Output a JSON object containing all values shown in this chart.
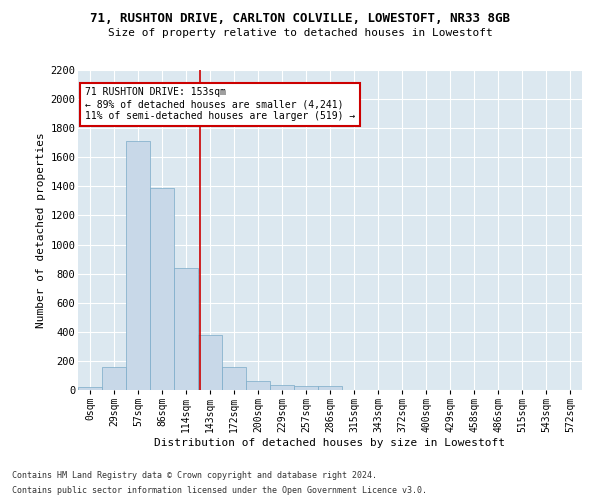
{
  "title": "71, RUSHTON DRIVE, CARLTON COLVILLE, LOWESTOFT, NR33 8GB",
  "subtitle": "Size of property relative to detached houses in Lowestoft",
  "xlabel": "Distribution of detached houses by size in Lowestoft",
  "ylabel": "Number of detached properties",
  "bar_color": "#c8d8e8",
  "bar_edge_color": "#7aaac8",
  "background_color": "#dce8f0",
  "fig_color": "#ffffff",
  "grid_color": "#ffffff",
  "bin_labels": [
    "0sqm",
    "29sqm",
    "57sqm",
    "86sqm",
    "114sqm",
    "143sqm",
    "172sqm",
    "200sqm",
    "229sqm",
    "257sqm",
    "286sqm",
    "315sqm",
    "343sqm",
    "372sqm",
    "400sqm",
    "429sqm",
    "458sqm",
    "486sqm",
    "515sqm",
    "543sqm",
    "572sqm"
  ],
  "bar_heights": [
    20,
    155,
    1710,
    1390,
    840,
    380,
    160,
    65,
    35,
    28,
    30,
    0,
    0,
    0,
    0,
    0,
    0,
    0,
    0,
    0,
    0
  ],
  "vline_x": 5.1,
  "vline_color": "#cc0000",
  "annotation_text": "71 RUSHTON DRIVE: 153sqm\n← 89% of detached houses are smaller (4,241)\n11% of semi-detached houses are larger (519) →",
  "annotation_box_color": "#ffffff",
  "annotation_border_color": "#cc0000",
  "ylim": [
    0,
    2200
  ],
  "yticks": [
    0,
    200,
    400,
    600,
    800,
    1000,
    1200,
    1400,
    1600,
    1800,
    2000,
    2200
  ],
  "footnote1": "Contains HM Land Registry data © Crown copyright and database right 2024.",
  "footnote2": "Contains public sector information licensed under the Open Government Licence v3.0."
}
